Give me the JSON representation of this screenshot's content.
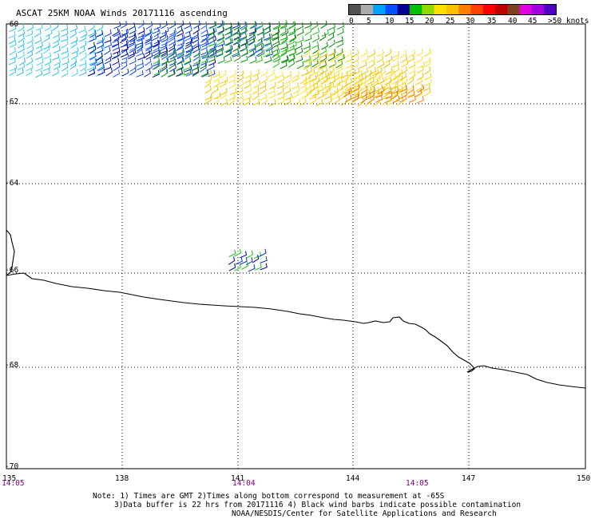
{
  "title": "ASCAT 25KM NOAA Winds 20171116 ascending",
  "legend": {
    "colors": [
      "#505050",
      "#aaaaaa",
      "#00a0ff",
      "#0050ff",
      "#000090",
      "#00c000",
      "#90d800",
      "#ffe000",
      "#ffc000",
      "#ff8000",
      "#ff4000",
      "#ff0000",
      "#c00000",
      "#804020",
      "#e000e0",
      "#a000e0",
      "#5000c0"
    ],
    "labels": [
      "0",
      "5",
      "10",
      "15",
      "20",
      "25",
      "30",
      "35",
      "40",
      "45",
      ">50 knots"
    ]
  },
  "lat_labels": [
    "-60",
    "-62",
    "-64",
    "-66",
    "-68",
    "-70"
  ],
  "lon_labels": [
    "135",
    "138",
    "141",
    "144",
    "147",
    "150"
  ],
  "times": [
    "14:05",
    "14:04",
    "14:05"
  ],
  "notes": [
    "Note: 1) Times are GMT 2)Times along bottom correspond to measurement at -65S",
    "3)Data buffer is 22 hrs from 20171116 4) Black wind barbs indicate possible contamination",
    "NOAA/NESDIS/Center for Satellite Applications and Research"
  ],
  "map_features": [
    "wind-barbs",
    "coastline",
    "graticule"
  ]
}
